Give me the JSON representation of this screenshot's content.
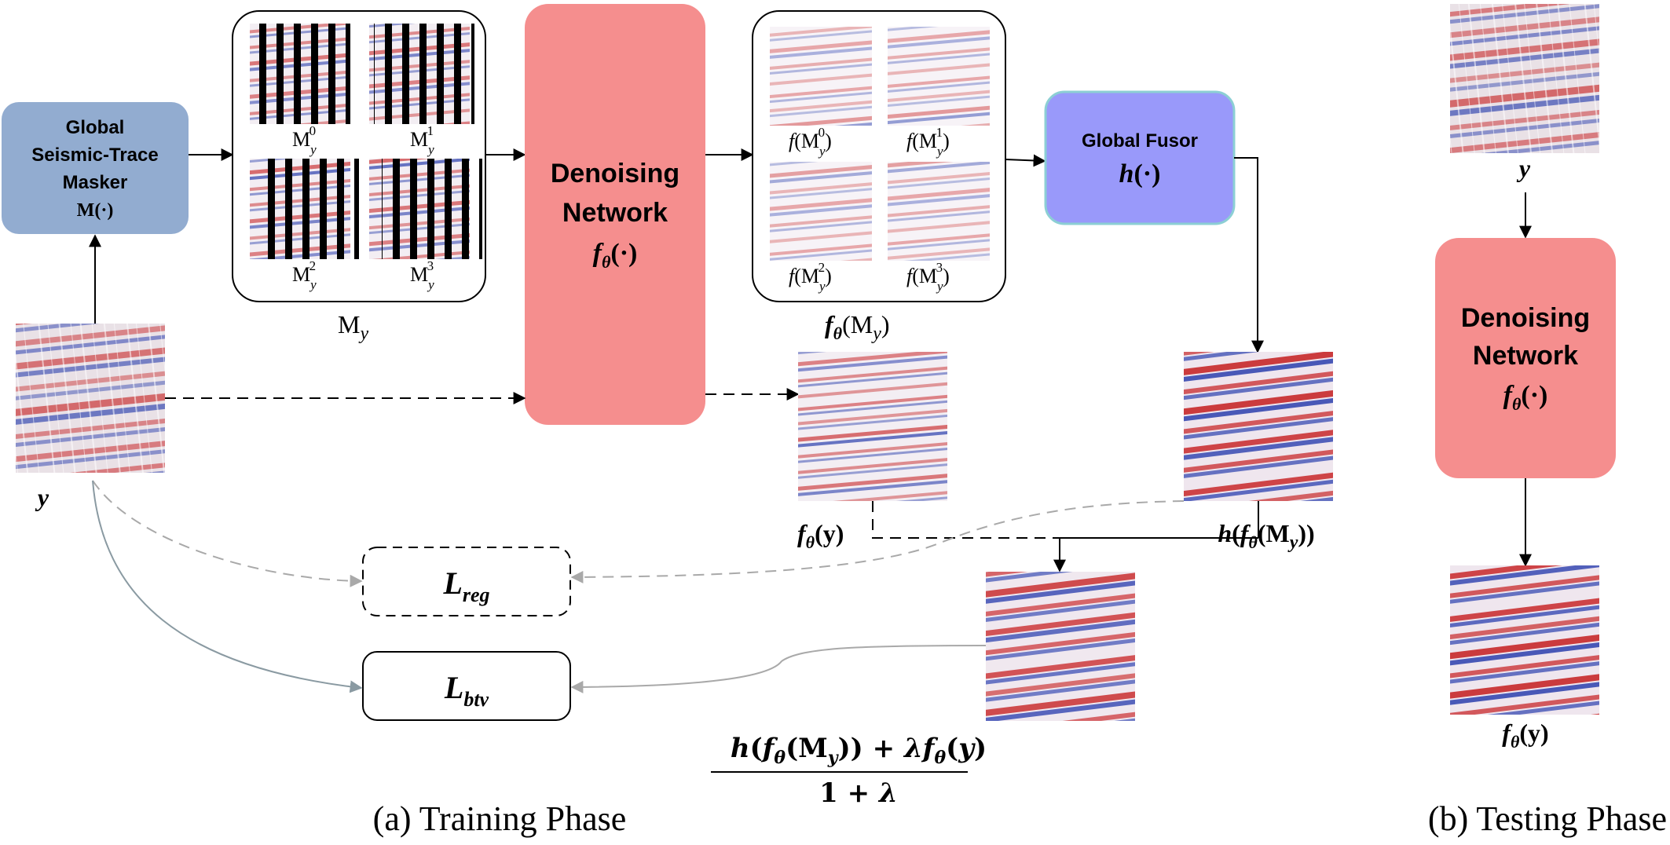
{
  "training": {
    "caption": "(a) Training Phase",
    "masker": {
      "line1": "Global",
      "line2": "Seismic-Trace",
      "line3": "Masker",
      "symbol": "M(·)"
    },
    "input_label": "y",
    "masked_set_label": {
      "main": "M",
      "sub": "y"
    },
    "masked_tiles": [
      {
        "sup": "0"
      },
      {
        "sup": "1"
      },
      {
        "sup": "2"
      },
      {
        "sup": "3"
      }
    ],
    "network": {
      "line1": "Denoising",
      "line2": "Network",
      "symbol": "f",
      "symbol_sub": "θ",
      "symbol_arg": "(·)"
    },
    "output_set_label": {
      "f": "f",
      "sub": "θ",
      "arg": "M",
      "arg_sub": "y"
    },
    "output_tiles": [
      {
        "f": "f",
        "sup": "0"
      },
      {
        "f": "f",
        "sup": "1"
      },
      {
        "f": "f",
        "sup": "2"
      },
      {
        "f": "f",
        "sup": "3"
      }
    ],
    "fusor": {
      "line1": "Global Fusor",
      "symbol": "h",
      "symbol_arg": "(·)"
    },
    "direct_output_label": {
      "f": "f",
      "sub": "θ",
      "arg": "(y)"
    },
    "fused_output_label": {
      "h": "h",
      "f": "f",
      "sub": "θ",
      "arg": "M",
      "arg_sub": "y"
    },
    "loss_reg": {
      "L": "L",
      "sub": "reg"
    },
    "loss_btv": {
      "L": "L",
      "sub": "btv"
    },
    "formula": {
      "num_h": "h",
      "num_f": "f",
      "num_theta": "θ",
      "num_M": "M",
      "num_y_sub": "y",
      "plus": "+",
      "lambda": "λ",
      "num_f2": "f",
      "num_theta2": "θ",
      "num_y": "y",
      "den_one": "1",
      "den_plus": "+",
      "den_lambda": "λ"
    }
  },
  "testing": {
    "caption": "(b) Testing Phase",
    "input_label": "y",
    "network": {
      "line1": "Denoising",
      "line2": "Network",
      "symbol": "f",
      "symbol_sub": "θ",
      "symbol_arg": "(·)"
    },
    "output_label": {
      "f": "f",
      "sub": "θ",
      "arg": "(y)"
    }
  },
  "colors": {
    "masker_fill": "#92acd0",
    "network_fill": "#f58e8e",
    "fusor_fill": "#9999fa",
    "fusor_stroke": "#8ccfd4",
    "seismic_red": "#c8282a",
    "seismic_blue": "#2b3fae"
  }
}
